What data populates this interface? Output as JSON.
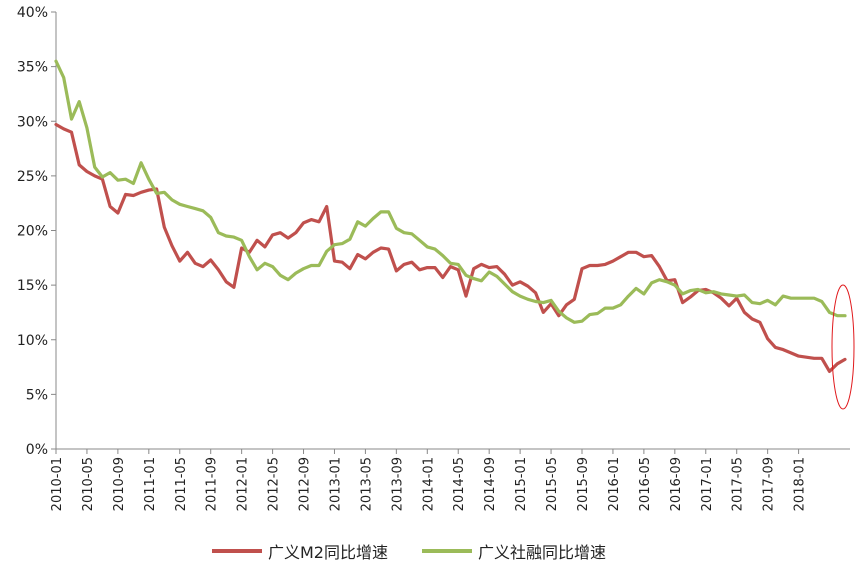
{
  "chart_data": {
    "type": "line",
    "x_tick_labels": [
      "2010-01",
      "2010-05",
      "2010-09",
      "2011-01",
      "2011-05",
      "2011-09",
      "2012-01",
      "2012-05",
      "2012-09",
      "2013-01",
      "2013-05",
      "2013-09",
      "2014-01",
      "2014-05",
      "2014-09",
      "2015-01",
      "2015-05",
      "2015-09",
      "2016-01",
      "2016-05",
      "2016-09",
      "2017-01",
      "2017-05",
      "2017-09",
      "2018-01"
    ],
    "y_tick_labels": [
      "0%",
      "5%",
      "10%",
      "15%",
      "20%",
      "25%",
      "30%",
      "35%",
      "40%"
    ],
    "ylim": [
      0,
      40
    ],
    "grid": false,
    "legend_position": "bottom",
    "series": [
      {
        "name": "广义M2同比增速",
        "color": "#c0504d",
        "values": [
          29.7,
          29.3,
          29.0,
          26.0,
          25.4,
          25.0,
          24.7,
          22.2,
          21.6,
          23.3,
          23.2,
          23.5,
          23.7,
          23.8,
          20.3,
          18.6,
          17.2,
          18.0,
          17.0,
          16.7,
          17.3,
          16.4,
          15.3,
          14.8,
          18.4,
          18.0,
          19.1,
          18.5,
          19.6,
          19.8,
          19.3,
          19.8,
          20.7,
          21.0,
          20.8,
          22.2,
          17.2,
          17.1,
          16.5,
          17.8,
          17.4,
          18.0,
          18.4,
          18.3,
          16.3,
          16.9,
          17.1,
          16.4,
          16.6,
          16.6,
          15.7,
          16.7,
          16.4,
          14.0,
          16.5,
          16.9,
          16.6,
          16.7,
          16.0,
          15.0,
          15.3,
          14.9,
          14.3,
          12.5,
          13.3,
          12.2,
          13.2,
          13.7,
          16.5,
          16.8,
          16.8,
          16.9,
          17.2,
          17.6,
          18.0,
          18.0,
          17.6,
          17.7,
          16.7,
          15.4,
          15.5,
          13.4,
          13.9,
          14.5,
          14.6,
          14.3,
          13.8,
          13.1,
          13.8,
          12.5,
          11.9,
          11.6,
          10.1,
          9.3,
          9.1,
          8.8,
          8.5,
          8.4,
          8.3,
          8.3,
          7.1,
          7.8,
          8.2
        ]
      },
      {
        "name": "广义社融同比增速",
        "color": "#9bbb59",
        "values": [
          35.5,
          34.0,
          30.2,
          31.8,
          29.4,
          25.8,
          24.9,
          25.3,
          24.6,
          24.7,
          24.3,
          26.2,
          24.7,
          23.4,
          23.5,
          22.8,
          22.4,
          22.2,
          22.0,
          21.8,
          21.2,
          19.8,
          19.5,
          19.4,
          19.1,
          17.6,
          16.4,
          17.0,
          16.7,
          15.9,
          15.5,
          16.1,
          16.5,
          16.8,
          16.8,
          18.1,
          18.7,
          18.8,
          19.2,
          20.8,
          20.4,
          21.1,
          21.7,
          21.7,
          20.2,
          19.8,
          19.7,
          19.1,
          18.5,
          18.3,
          17.7,
          17.0,
          16.9,
          15.9,
          15.6,
          15.4,
          16.2,
          15.8,
          15.1,
          14.4,
          14.0,
          13.7,
          13.5,
          13.4,
          13.6,
          12.6,
          12.0,
          11.6,
          11.7,
          12.3,
          12.4,
          12.9,
          12.9,
          13.2,
          14.0,
          14.7,
          14.2,
          15.2,
          15.5,
          15.3,
          15.0,
          14.2,
          14.5,
          14.6,
          14.3,
          14.4,
          14.2,
          14.1,
          14.0,
          14.1,
          13.4,
          13.3,
          13.6,
          13.2,
          14.0,
          13.8,
          13.8,
          13.8,
          13.8,
          13.5,
          12.5,
          12.2,
          12.2
        ]
      }
    ],
    "annotation": "red ellipse highlighting 2018-01 values"
  }
}
